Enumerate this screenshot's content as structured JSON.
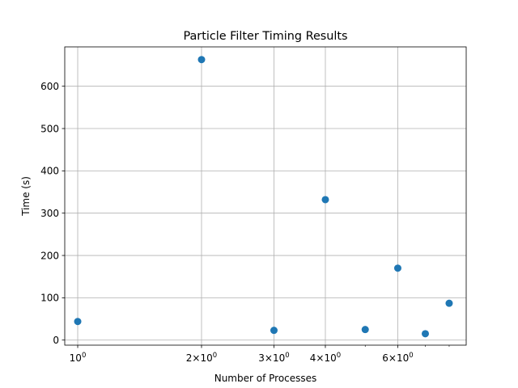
{
  "chart_data": {
    "type": "scatter",
    "title": "Particle Filter Timing Results",
    "xlabel": "Number of Processes",
    "ylabel": "Time (s)",
    "x_scale": "log",
    "xlim": [
      0.93,
      8.8
    ],
    "ylim": [
      -12,
      693
    ],
    "grid": true,
    "marker_color": "#1f77b4",
    "x_ticks": [
      {
        "value": 1,
        "base": "10",
        "exp": "0"
      },
      {
        "value": 2,
        "base": "2×10",
        "exp": "0"
      },
      {
        "value": 3,
        "base": "3×10",
        "exp": "0"
      },
      {
        "value": 4,
        "base": "4×10",
        "exp": "0"
      },
      {
        "value": 6,
        "base": "6×10",
        "exp": "0"
      }
    ],
    "x_minor_ticks": [
      5,
      7,
      8
    ],
    "y_ticks": [
      0,
      100,
      200,
      300,
      400,
      500,
      600
    ],
    "points": [
      {
        "x": 1,
        "y": 44
      },
      {
        "x": 2,
        "y": 663
      },
      {
        "x": 3,
        "y": 23
      },
      {
        "x": 4,
        "y": 332
      },
      {
        "x": 5,
        "y": 25
      },
      {
        "x": 6,
        "y": 170
      },
      {
        "x": 7,
        "y": 15
      },
      {
        "x": 8,
        "y": 87
      }
    ]
  }
}
